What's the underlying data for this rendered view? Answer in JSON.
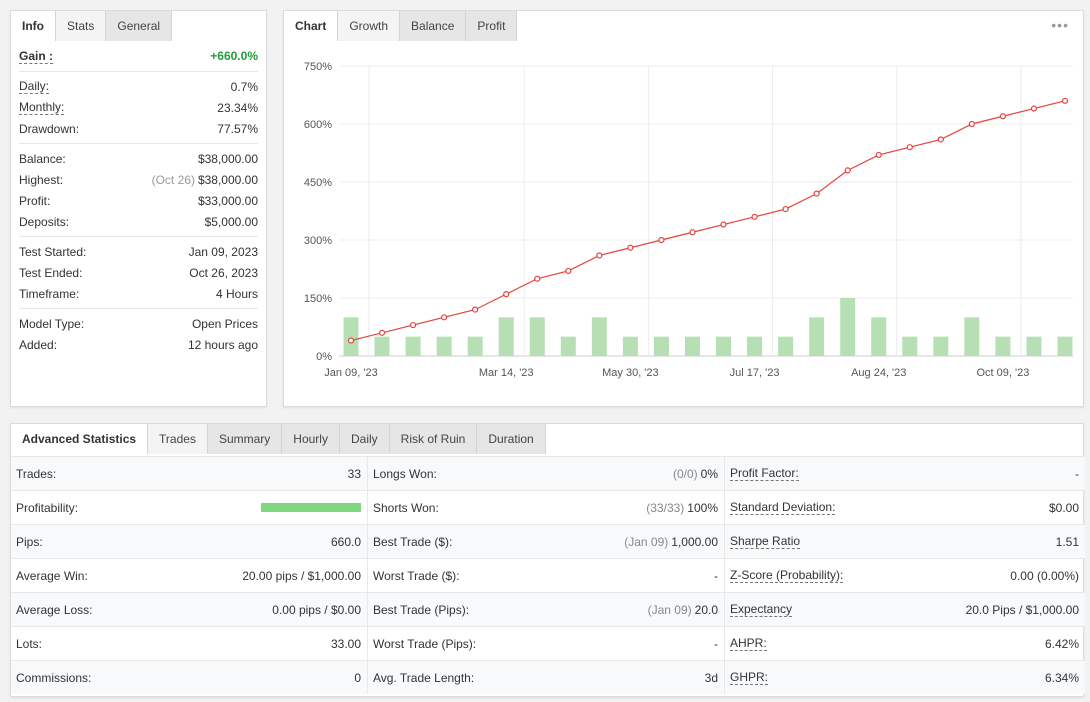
{
  "info": {
    "tabs": [
      "Info",
      "Stats",
      "General"
    ],
    "gain": {
      "label": "Gain :",
      "value": "+660.0%"
    },
    "group1": [
      {
        "label": "Daily:",
        "value": "0.7%",
        "dotted": true
      },
      {
        "label": "Monthly:",
        "value": "23.34%",
        "dotted": true
      },
      {
        "label": "Drawdown:",
        "value": "77.57%",
        "dotted": false
      }
    ],
    "group2": [
      {
        "label": "Balance:",
        "value": "$38,000.00"
      },
      {
        "label": "Highest:",
        "note": "(Oct 26)",
        "value": "$38,000.00"
      },
      {
        "label": "Profit:",
        "value": "$33,000.00",
        "green": true
      },
      {
        "label": "Deposits:",
        "value": "$5,000.00"
      }
    ],
    "group3": [
      {
        "label": "Test Started:",
        "value": "Jan 09, 2023"
      },
      {
        "label": "Test Ended:",
        "value": "Oct 26, 2023"
      },
      {
        "label": "Timeframe:",
        "value": "4 Hours"
      }
    ],
    "group4": [
      {
        "label": "Model Type:",
        "value": "Open Prices"
      },
      {
        "label": "Added:",
        "value": "12 hours ago"
      }
    ]
  },
  "chart_panel": {
    "tabs": [
      "Chart",
      "Growth",
      "Balance",
      "Profit"
    ],
    "menu_glyph": "•••"
  },
  "chart_data": {
    "type": "line",
    "x_tick_labels": [
      "Jan 09, '23",
      "Mar 14, '23",
      "May 30, '23",
      "Jul 17, '23",
      "Aug 24, '23",
      "Oct 09, '23"
    ],
    "y_tick_labels": [
      "0%",
      "150%",
      "300%",
      "450%",
      "600%",
      "750%"
    ],
    "ylim": [
      0,
      750
    ],
    "grid": true,
    "series": [
      {
        "kind": "line",
        "color": "#e8413c",
        "values": [
          40,
          60,
          80,
          100,
          120,
          160,
          200,
          220,
          260,
          280,
          300,
          320,
          340,
          360,
          380,
          420,
          480,
          520,
          540,
          560,
          600,
          620,
          640,
          660
        ]
      },
      {
        "kind": "bar",
        "color": "#b6dfb4",
        "values": [
          100,
          50,
          50,
          50,
          50,
          100,
          100,
          50,
          100,
          50,
          50,
          50,
          50,
          50,
          50,
          100,
          150,
          100,
          50,
          50,
          100,
          50,
          50,
          50
        ]
      }
    ]
  },
  "advanced": {
    "tabs": [
      "Advanced Statistics",
      "Trades",
      "Summary",
      "Hourly",
      "Daily",
      "Risk of Ruin",
      "Duration"
    ],
    "rows": [
      {
        "c1": {
          "label": "Trades:",
          "value": "33"
        },
        "c2": {
          "label": "Longs Won:",
          "muted": "(0/0)",
          "value": "0%"
        },
        "c3": {
          "label": "Profit Factor:",
          "value": "-"
        }
      },
      {
        "c1": {
          "label": "Profitability:",
          "bar": 1.0
        },
        "c2": {
          "label": "Shorts Won:",
          "muted": "(33/33)",
          "value": "100%"
        },
        "c3": {
          "label": "Standard Deviation:",
          "value": "$0.00"
        }
      },
      {
        "c1": {
          "label": "Pips:",
          "value": "660.0"
        },
        "c2": {
          "label": "Best Trade ($):",
          "muted": "(Jan 09)",
          "value": "1,000.00"
        },
        "c3": {
          "label": "Sharpe Ratio",
          "value": "1.51"
        }
      },
      {
        "c1": {
          "label": "Average Win:",
          "value": "20.00 pips / $1,000.00"
        },
        "c2": {
          "label": "Worst Trade ($):",
          "value": "-"
        },
        "c3": {
          "label": "Z-Score (Probability):",
          "value": "0.00 (0.00%)"
        }
      },
      {
        "c1": {
          "label": "Average Loss:",
          "value": "0.00 pips / $0.00"
        },
        "c2": {
          "label": "Best Trade (Pips):",
          "muted": "(Jan 09)",
          "value": "20.0"
        },
        "c3": {
          "label": "Expectancy",
          "value": "20.0 Pips / $1,000.00"
        }
      },
      {
        "c1": {
          "label": "Lots:",
          "value": "33.00"
        },
        "c2": {
          "label": "Worst Trade (Pips):",
          "value": "-"
        },
        "c3": {
          "label": "AHPR:",
          "value": "6.42%"
        }
      },
      {
        "c1": {
          "label": "Commissions:",
          "value": "0"
        },
        "c2": {
          "label": "Avg. Trade Length:",
          "value": "3d"
        },
        "c3": {
          "label": "GHPR:",
          "value": "6.34%"
        }
      }
    ]
  }
}
